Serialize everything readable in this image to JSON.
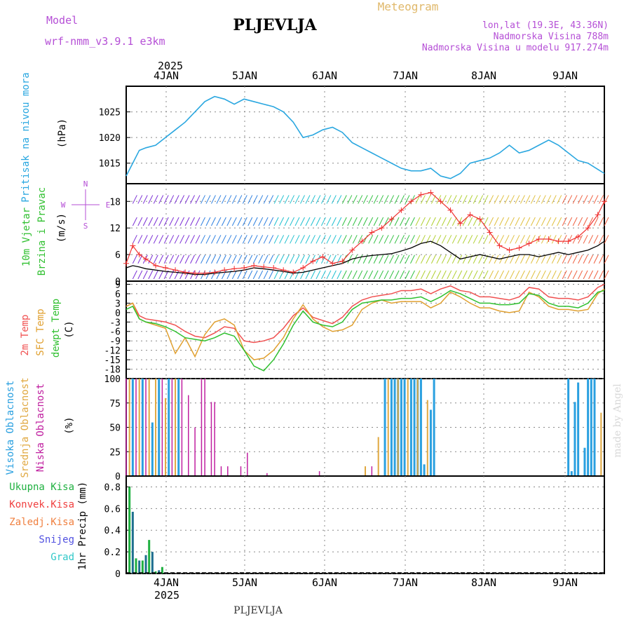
{
  "header": {
    "model_label": "Model",
    "model_name": "wrf-nmm_v3.9.1  e3km",
    "station_title": "PLJEVLJA",
    "meteogram_label": "Meteogram",
    "lonlat": "lon,lat (19.3E, 43.36N)",
    "altitude": "Nadmorska Visina 788m",
    "model_altitude": "Nadmorska Visina u modelu 917.274m",
    "year": "2025",
    "bottom_year": "2025",
    "footer_station": "PLJEVLJA",
    "watermark": "made by Angel"
  },
  "colors": {
    "purple": "#b54fd6",
    "tan": "#e0b86a",
    "pressure": "#2aa7e0",
    "temp2m": "#f05050",
    "sfc": "#e0a030",
    "dewpt": "#30c030",
    "high_cloud": "#2aa0e0",
    "mid_cloud": "#e0a840",
    "low_cloud": "#c020a0",
    "precip_total": "#1fb040",
    "precip_conv": "#f04040",
    "precip_frz": "#f08040",
    "snow": "#5050e0",
    "hail": "#30c8c8"
  },
  "chart_data": [
    {
      "type": "line",
      "name": "pressure",
      "title": "Pritisak na nivou mora",
      "ylabel": "(hPa)",
      "x_ticks": [
        "4JAN",
        "5JAN",
        "6JAN",
        "7JAN",
        "8JAN",
        "9JAN"
      ],
      "xlim_hours": [
        0,
        146
      ],
      "ylim": [
        1011,
        1030
      ],
      "y_ticks": [
        1015,
        1020,
        1025
      ],
      "series": [
        {
          "name": "Sea level pressure",
          "x": [
            0,
            2,
            4,
            6,
            9,
            12,
            15,
            18,
            21,
            24,
            27,
            30,
            33,
            36,
            39,
            42,
            45,
            48,
            51,
            54,
            57,
            60,
            63,
            66,
            69,
            72,
            75,
            78,
            81,
            84,
            87,
            90,
            93,
            96,
            99,
            102,
            105,
            108,
            111,
            114,
            117,
            120,
            123,
            126,
            129,
            132,
            135,
            138,
            141,
            144,
            146
          ],
          "values": [
            1012.5,
            1015,
            1017.5,
            1018,
            1018.5,
            1020,
            1021.5,
            1023,
            1025,
            1027,
            1028,
            1027.5,
            1026.5,
            1027.5,
            1027,
            1026.5,
            1026,
            1025,
            1023,
            1020,
            1020.5,
            1021.5,
            1022,
            1021,
            1019,
            1018,
            1017,
            1016,
            1015,
            1014,
            1013.5,
            1013.5,
            1014,
            1012.5,
            1012,
            1013,
            1015,
            1015.5,
            1016,
            1017,
            1018.5,
            1017,
            1017.5,
            1018.5,
            1019.5,
            1018.5,
            1017,
            1015.5,
            1015,
            1013.8,
            1013
          ]
        }
      ]
    },
    {
      "type": "line",
      "name": "wind",
      "title": "10m Vjetar",
      "title2": "Brzina i Pravac",
      "ylabel": "(m/s)",
      "legend_compass": [
        "N",
        "E",
        "S",
        "W"
      ],
      "ylim": [
        0,
        22
      ],
      "y_ticks": [
        0,
        6,
        12,
        18
      ],
      "series": [
        {
          "name": "10m wind speed",
          "x": [
            0,
            2,
            4,
            6,
            9,
            12,
            15,
            18,
            21,
            24,
            27,
            30,
            33,
            36,
            39,
            42,
            45,
            48,
            51,
            54,
            57,
            60,
            63,
            66,
            69,
            72,
            75,
            78,
            81,
            84,
            87,
            90,
            93,
            96,
            99,
            102,
            105,
            108,
            111,
            114,
            117,
            120,
            123,
            126,
            129,
            132,
            135,
            138,
            141,
            144,
            146
          ],
          "values": [
            3,
            3.5,
            3.2,
            2.8,
            2.5,
            2.2,
            2,
            1.8,
            1.5,
            1.5,
            1.8,
            2,
            2.2,
            2.5,
            3,
            2.8,
            2.5,
            2.2,
            1.8,
            2,
            2.5,
            3,
            3.5,
            4,
            5,
            5.5,
            5.8,
            6,
            6.2,
            6.8,
            7.5,
            8.5,
            9,
            8,
            6.5,
            5,
            5.5,
            6,
            5.5,
            5,
            5.5,
            6,
            6,
            5.5,
            6,
            6.5,
            6,
            6.5,
            7,
            8,
            9
          ]
        },
        {
          "name": "10m wind gust",
          "x": [
            0,
            2,
            4,
            6,
            9,
            12,
            15,
            18,
            21,
            24,
            27,
            30,
            33,
            36,
            39,
            42,
            45,
            48,
            51,
            54,
            57,
            60,
            63,
            66,
            69,
            72,
            75,
            78,
            81,
            84,
            87,
            90,
            93,
            96,
            99,
            102,
            105,
            108,
            111,
            114,
            117,
            120,
            123,
            126,
            129,
            132,
            135,
            138,
            141,
            144,
            146
          ],
          "values": [
            4,
            8,
            6,
            5,
            3.5,
            3,
            2.5,
            2,
            1.8,
            1.8,
            2,
            2.5,
            2.8,
            3,
            3.5,
            3.2,
            3,
            2.5,
            2,
            3,
            4.5,
            5.5,
            4,
            4.5,
            7,
            9,
            11,
            12,
            14,
            16,
            18,
            19.5,
            20,
            18,
            16,
            13,
            15,
            14,
            11,
            8,
            7,
            7.5,
            8.5,
            9.5,
            9.5,
            9,
            9,
            10,
            12,
            15,
            18
          ]
        }
      ]
    },
    {
      "type": "line",
      "name": "temperature",
      "title": "2m Temp",
      "title2": "SFC Temp",
      "title3": "dewpt Temp",
      "ylabel": "(C)",
      "ylim": [
        -21,
        10
      ],
      "y_ticks": [
        9,
        6,
        3,
        0,
        -3,
        -6,
        -9,
        -12,
        -15,
        -18
      ],
      "series": [
        {
          "name": "2m Temp",
          "x": [
            0,
            2,
            4,
            6,
            9,
            12,
            15,
            18,
            21,
            24,
            27,
            30,
            33,
            36,
            39,
            42,
            45,
            48,
            51,
            54,
            57,
            60,
            63,
            66,
            69,
            72,
            75,
            78,
            81,
            84,
            87,
            90,
            93,
            96,
            99,
            102,
            105,
            108,
            111,
            114,
            117,
            120,
            123,
            126,
            129,
            132,
            135,
            138,
            141,
            144,
            146
          ],
          "values": [
            2,
            3,
            -1,
            -2,
            -2.5,
            -3,
            -4,
            -6,
            -7.5,
            -8,
            -6.5,
            -4.5,
            -5,
            -9,
            -9.5,
            -9,
            -8,
            -5,
            -1,
            1.5,
            -1.5,
            -2.5,
            -3.5,
            -1.5,
            2,
            4,
            5,
            5.5,
            6,
            7,
            7,
            7.5,
            6,
            7.5,
            8.5,
            7,
            6.5,
            5,
            5,
            4.5,
            4,
            5,
            8,
            7.5,
            5,
            4.5,
            4.5,
            4,
            5,
            8,
            9
          ]
        },
        {
          "name": "SFC Temp",
          "x": [
            0,
            2,
            4,
            6,
            9,
            12,
            15,
            18,
            21,
            24,
            27,
            30,
            33,
            36,
            39,
            42,
            45,
            48,
            51,
            54,
            57,
            60,
            63,
            66,
            69,
            72,
            75,
            78,
            81,
            84,
            87,
            90,
            93,
            96,
            99,
            102,
            105,
            108,
            111,
            114,
            117,
            120,
            123,
            126,
            129,
            132,
            135,
            138,
            141,
            144,
            146
          ],
          "values": [
            2,
            3,
            -2,
            -3,
            -4,
            -5,
            -13,
            -8,
            -14,
            -7,
            -3,
            -2,
            -4,
            -12,
            -15,
            -14.5,
            -12,
            -8,
            -2,
            2.5,
            -2,
            -4.5,
            -6,
            -5.5,
            -4,
            1,
            3,
            4,
            3,
            3.5,
            3.5,
            3.5,
            1.5,
            3,
            6.5,
            5,
            3,
            1.5,
            1.5,
            0.5,
            0,
            0.5,
            6.5,
            5,
            2,
            1,
            1,
            0.5,
            1,
            6,
            7.5
          ]
        },
        {
          "name": "dewpt Temp",
          "x": [
            0,
            2,
            4,
            6,
            9,
            12,
            15,
            18,
            21,
            24,
            27,
            30,
            33,
            36,
            39,
            42,
            45,
            48,
            51,
            54,
            57,
            60,
            63,
            66,
            69,
            72,
            75,
            78,
            81,
            84,
            87,
            90,
            93,
            96,
            99,
            102,
            105,
            108,
            111,
            114,
            117,
            120,
            123,
            126,
            129,
            132,
            135,
            138,
            141,
            144,
            146
          ],
          "values": [
            1,
            2,
            -2,
            -3,
            -3.5,
            -4.5,
            -6,
            -8,
            -8.5,
            -9,
            -8,
            -6.5,
            -7.5,
            -12,
            -17,
            -18.5,
            -15,
            -10,
            -4,
            0.5,
            -3,
            -4,
            -4.5,
            -3,
            1,
            3,
            3.5,
            4,
            4,
            4.5,
            4.5,
            5,
            3.5,
            5,
            7,
            6,
            4.5,
            3,
            3,
            2.5,
            2.5,
            3,
            6,
            5.5,
            3,
            2,
            2,
            1.5,
            3,
            6.5,
            7
          ]
        }
      ]
    },
    {
      "type": "bar",
      "name": "cloudiness",
      "title": "Visoka Oblacnost",
      "title2": "Srednja Oblacnost",
      "title3": "Niska Oblacnost",
      "ylabel": "(%)",
      "ylim": [
        0,
        100
      ],
      "y_ticks": [
        0,
        25,
        50,
        75,
        100
      ],
      "series": [
        {
          "name": "Visoka Oblacnost",
          "x": [
            2,
            5,
            8,
            10,
            13,
            16,
            79,
            81,
            82,
            83,
            84,
            85,
            87,
            88,
            89,
            90,
            91,
            93,
            94,
            135,
            136,
            137,
            138,
            139,
            140,
            141,
            142,
            143
          ],
          "values": [
            100,
            100,
            55,
            100,
            100,
            100,
            100,
            100,
            100,
            100,
            100,
            100,
            100,
            100,
            100,
            100,
            12,
            68,
            100,
            100,
            5,
            76,
            96,
            0,
            29,
            100,
            100,
            100
          ]
        },
        {
          "name": "Srednja Oblacnost",
          "x": [
            1,
            4,
            7,
            9,
            12,
            15,
            73,
            77,
            80,
            83,
            86,
            89,
            92,
            145
          ],
          "values": [
            100,
            100,
            100,
            100,
            80,
            100,
            10,
            40,
            100,
            100,
            100,
            100,
            78,
            65
          ]
        },
        {
          "name": "Niska Oblacnost",
          "x": [
            0,
            3,
            6,
            11,
            14,
            17,
            19,
            21,
            23,
            24,
            26,
            27,
            29,
            31,
            35,
            37,
            39,
            43,
            59,
            75
          ],
          "values": [
            100,
            100,
            100,
            100,
            100,
            100,
            83,
            50,
            100,
            100,
            76,
            76,
            10,
            10,
            10,
            24,
            0,
            3,
            5,
            10
          ]
        }
      ]
    },
    {
      "type": "bar",
      "name": "precipitation",
      "title_lines": [
        "Ukupna  Kisa",
        "Konvek.Kisa",
        "Zaledj.Kisa",
        "Snijeg",
        "Grad"
      ],
      "ylabel": "1hr Precip (mm)",
      "ylim": [
        0,
        0.9
      ],
      "y_ticks": [
        0,
        0.2,
        0.4,
        0.6,
        0.8
      ],
      "series": [
        {
          "name": "Ukupna Kisa",
          "x": [
            1,
            2,
            3,
            4,
            5,
            6,
            7,
            8,
            9,
            10,
            11,
            12
          ],
          "values": [
            0.8,
            0.57,
            0.14,
            0.12,
            0.12,
            0.17,
            0.31,
            0.2,
            0.02,
            0.03,
            0.06,
            0.01
          ]
        }
      ]
    }
  ]
}
